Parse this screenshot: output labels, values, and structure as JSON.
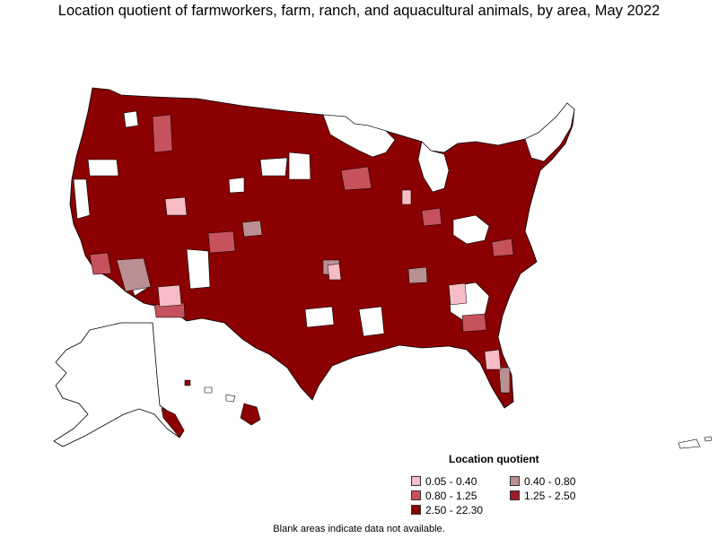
{
  "title": "Location quotient of farmworkers, farm, ranch, and aquacultural animals, by area, May 2022",
  "legend": {
    "title": "Location quotient",
    "items": [
      {
        "label": "0.05 - 0.40",
        "color": "#f7bcc5"
      },
      {
        "label": "0.40 - 0.80",
        "color": "#bb9092"
      },
      {
        "label": "0.80 - 1.25",
        "color": "#c5525c"
      },
      {
        "label": "1.25 - 2.50",
        "color": "#9e1b27"
      },
      {
        "label": "2.50 - 22.30",
        "color": "#8b0000"
      }
    ]
  },
  "note": "Blank areas indicate data not available.",
  "colors": {
    "no_data": "#ffffff",
    "border": "#000000"
  }
}
